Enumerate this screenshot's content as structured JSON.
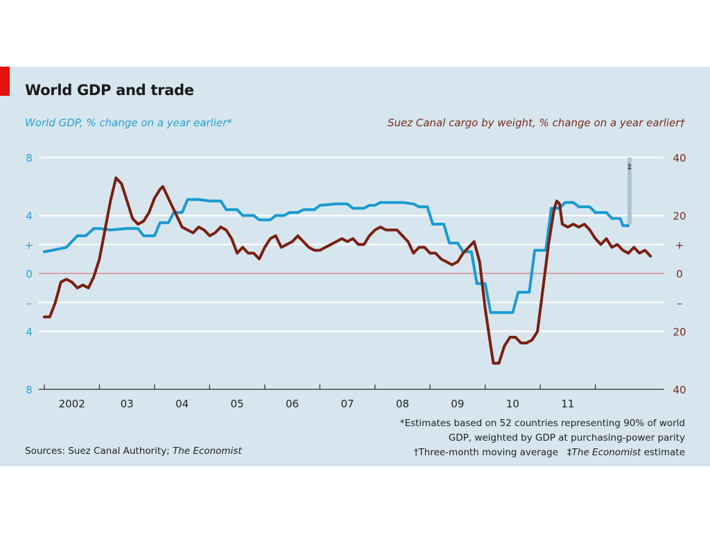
{
  "header": {
    "title": "World GDP and trade",
    "left_subtitle": "World GDP, % change on a year earlier*",
    "right_subtitle": "Suez Canal cargo by weight, % change on a year earlier†"
  },
  "footer": {
    "footnote_line1": "*Estimates based on 52 countries representing 90% of world",
    "footnote_line2": "GDP, weighted by GDP at purchasing-power parity",
    "footnote_line3a": "†Three-month moving average",
    "footnote_line3b": "‡",
    "footnote_line3c": "The Economist",
    "footnote_line3d": " estimate",
    "sources_prefix": "Sources: Suez Canal Authority; ",
    "sources_italic": "The Economist"
  },
  "colors": {
    "panel_background": "#d7e6ee",
    "gdp_line": "#1a9bd1",
    "suez_line": "#7a1f12",
    "zero_line": "#d47a7a",
    "left_axis_text": "#2a9fd0",
    "right_axis_text": "#7a2a1c",
    "accent_tab": "#e3120b"
  },
  "chart_data": {
    "type": "line",
    "x_ticks": [
      "2002",
      "03",
      "04",
      "05",
      "06",
      "07",
      "08",
      "09",
      "10",
      "11"
    ],
    "left_axis": {
      "range": [
        -8,
        8
      ],
      "tick_values": [
        8,
        4,
        2,
        0,
        -2,
        -4,
        -8
      ],
      "tick_labels": [
        "8",
        "4",
        "+",
        "0",
        "–",
        "4",
        "8"
      ]
    },
    "right_axis": {
      "range": [
        -40,
        40
      ],
      "tick_values": [
        40,
        20,
        10,
        0,
        -10,
        -20,
        -40
      ],
      "tick_labels": [
        "40",
        "20",
        "+",
        "0",
        "–",
        "20",
        "40"
      ]
    },
    "forecast_marker": "‡",
    "grid": true,
    "series": [
      {
        "axis": "left",
        "points": [
          [
            2002.0,
            1.5
          ],
          [
            2002.15,
            1.6
          ],
          [
            2002.4,
            1.8
          ],
          [
            2002.6,
            2.6
          ],
          [
            2002.75,
            2.6
          ],
          [
            2002.9,
            3.1
          ],
          [
            2003.0,
            3.1
          ],
          [
            2003.2,
            3.0
          ],
          [
            2003.5,
            3.1
          ],
          [
            2003.7,
            3.1
          ],
          [
            2003.8,
            2.6
          ],
          [
            2004.0,
            2.6
          ],
          [
            2004.1,
            3.5
          ],
          [
            2004.25,
            3.5
          ],
          [
            2004.35,
            4.2
          ],
          [
            2004.5,
            4.2
          ],
          [
            2004.6,
            5.1
          ],
          [
            2004.8,
            5.1
          ],
          [
            2005.0,
            5.0
          ],
          [
            2005.2,
            5.0
          ],
          [
            2005.3,
            4.4
          ],
          [
            2005.5,
            4.4
          ],
          [
            2005.6,
            4.0
          ],
          [
            2005.8,
            4.0
          ],
          [
            2005.9,
            3.7
          ],
          [
            2006.1,
            3.7
          ],
          [
            2006.2,
            4.0
          ],
          [
            2006.35,
            4.0
          ],
          [
            2006.45,
            4.2
          ],
          [
            2006.6,
            4.2
          ],
          [
            2006.7,
            4.4
          ],
          [
            2006.9,
            4.4
          ],
          [
            2007.0,
            4.7
          ],
          [
            2007.3,
            4.8
          ],
          [
            2007.5,
            4.8
          ],
          [
            2007.6,
            4.5
          ],
          [
            2007.8,
            4.5
          ],
          [
            2007.9,
            4.7
          ],
          [
            2008.0,
            4.7
          ],
          [
            2008.1,
            4.9
          ],
          [
            2008.5,
            4.9
          ],
          [
            2008.7,
            4.8
          ],
          [
            2008.8,
            4.6
          ],
          [
            2008.95,
            4.6
          ],
          [
            2009.05,
            3.4
          ],
          [
            2009.25,
            3.4
          ],
          [
            2009.35,
            2.1
          ],
          [
            2009.5,
            2.1
          ],
          [
            2009.6,
            1.5
          ],
          [
            2009.75,
            1.5
          ],
          [
            2009.85,
            -0.7
          ],
          [
            2010.0,
            -0.7
          ],
          [
            2010.1,
            -2.7
          ],
          [
            2010.5,
            -2.7
          ],
          [
            2010.6,
            -1.3
          ],
          [
            2010.8,
            -1.3
          ],
          [
            2010.9,
            1.6
          ],
          [
            2011.1,
            1.6
          ],
          [
            2011.2,
            4.5
          ],
          [
            2011.35,
            4.5
          ],
          [
            2011.45,
            4.9
          ],
          [
            2011.6,
            4.9
          ],
          [
            2011.7,
            4.6
          ],
          [
            2011.9,
            4.6
          ],
          [
            2012.0,
            4.2
          ],
          [
            2012.2,
            4.2
          ],
          [
            2012.3,
            3.8
          ],
          [
            2012.45,
            3.8
          ],
          [
            2012.5,
            3.3
          ],
          [
            2012.6,
            3.3
          ]
        ]
      },
      {
        "axis": "right",
        "points": [
          [
            2002.0,
            -15
          ],
          [
            2002.1,
            -15
          ],
          [
            2002.2,
            -10
          ],
          [
            2002.3,
            -3
          ],
          [
            2002.4,
            -2
          ],
          [
            2002.5,
            -3
          ],
          [
            2002.6,
            -5
          ],
          [
            2002.7,
            -4
          ],
          [
            2002.8,
            -5
          ],
          [
            2002.9,
            -1
          ],
          [
            2003.0,
            5
          ],
          [
            2003.1,
            15
          ],
          [
            2003.2,
            25
          ],
          [
            2003.3,
            33
          ],
          [
            2003.4,
            31
          ],
          [
            2003.5,
            25
          ],
          [
            2003.6,
            19
          ],
          [
            2003.7,
            17
          ],
          [
            2003.8,
            18
          ],
          [
            2003.9,
            21
          ],
          [
            2004.0,
            26
          ],
          [
            2004.1,
            29
          ],
          [
            2004.15,
            30
          ],
          [
            2004.2,
            28
          ],
          [
            2004.3,
            24
          ],
          [
            2004.4,
            20
          ],
          [
            2004.5,
            16
          ],
          [
            2004.6,
            15
          ],
          [
            2004.7,
            14
          ],
          [
            2004.8,
            16
          ],
          [
            2004.9,
            15
          ],
          [
            2005.0,
            13
          ],
          [
            2005.1,
            14
          ],
          [
            2005.2,
            16
          ],
          [
            2005.3,
            15
          ],
          [
            2005.4,
            12
          ],
          [
            2005.5,
            7
          ],
          [
            2005.6,
            9
          ],
          [
            2005.7,
            7
          ],
          [
            2005.8,
            7
          ],
          [
            2005.9,
            5
          ],
          [
            2006.0,
            9
          ],
          [
            2006.1,
            12
          ],
          [
            2006.2,
            13
          ],
          [
            2006.3,
            9
          ],
          [
            2006.4,
            10
          ],
          [
            2006.5,
            11
          ],
          [
            2006.6,
            13
          ],
          [
            2006.7,
            11
          ],
          [
            2006.8,
            9
          ],
          [
            2006.9,
            8
          ],
          [
            2007.0,
            8
          ],
          [
            2007.1,
            9
          ],
          [
            2007.2,
            10
          ],
          [
            2007.3,
            11
          ],
          [
            2007.4,
            12
          ],
          [
            2007.5,
            11
          ],
          [
            2007.6,
            12
          ],
          [
            2007.7,
            10
          ],
          [
            2007.8,
            10
          ],
          [
            2007.9,
            13
          ],
          [
            2008.0,
            15
          ],
          [
            2008.1,
            16
          ],
          [
            2008.2,
            15
          ],
          [
            2008.3,
            15
          ],
          [
            2008.4,
            15
          ],
          [
            2008.5,
            13
          ],
          [
            2008.6,
            11
          ],
          [
            2008.7,
            7
          ],
          [
            2008.8,
            9
          ],
          [
            2008.9,
            9
          ],
          [
            2009.0,
            7
          ],
          [
            2009.1,
            7
          ],
          [
            2009.2,
            5
          ],
          [
            2009.3,
            4
          ],
          [
            2009.4,
            3
          ],
          [
            2009.5,
            4
          ],
          [
            2009.6,
            7
          ],
          [
            2009.7,
            9
          ],
          [
            2009.8,
            11
          ],
          [
            2009.9,
            4
          ],
          [
            2010.0,
            -12
          ],
          [
            2010.1,
            -25
          ],
          [
            2010.15,
            -31
          ],
          [
            2010.25,
            -31
          ],
          [
            2010.35,
            -25
          ],
          [
            2010.45,
            -22
          ],
          [
            2010.55,
            -22
          ],
          [
            2010.65,
            -24
          ],
          [
            2010.75,
            -24
          ],
          [
            2010.85,
            -23
          ],
          [
            2010.95,
            -20
          ],
          [
            2011.05,
            -5
          ],
          [
            2011.15,
            10
          ],
          [
            2011.25,
            22
          ],
          [
            2011.3,
            25
          ],
          [
            2011.35,
            24
          ],
          [
            2011.4,
            17
          ],
          [
            2011.5,
            16
          ],
          [
            2011.6,
            17
          ],
          [
            2011.7,
            16
          ],
          [
            2011.8,
            17
          ],
          [
            2011.9,
            15
          ],
          [
            2012.0,
            12
          ],
          [
            2012.1,
            10
          ],
          [
            2012.2,
            12
          ],
          [
            2012.3,
            9
          ],
          [
            2012.4,
            10
          ],
          [
            2012.5,
            8
          ],
          [
            2012.6,
            7
          ],
          [
            2012.7,
            9
          ],
          [
            2012.8,
            7
          ],
          [
            2012.9,
            8
          ],
          [
            2013.0,
            6
          ]
        ]
      }
    ]
  }
}
